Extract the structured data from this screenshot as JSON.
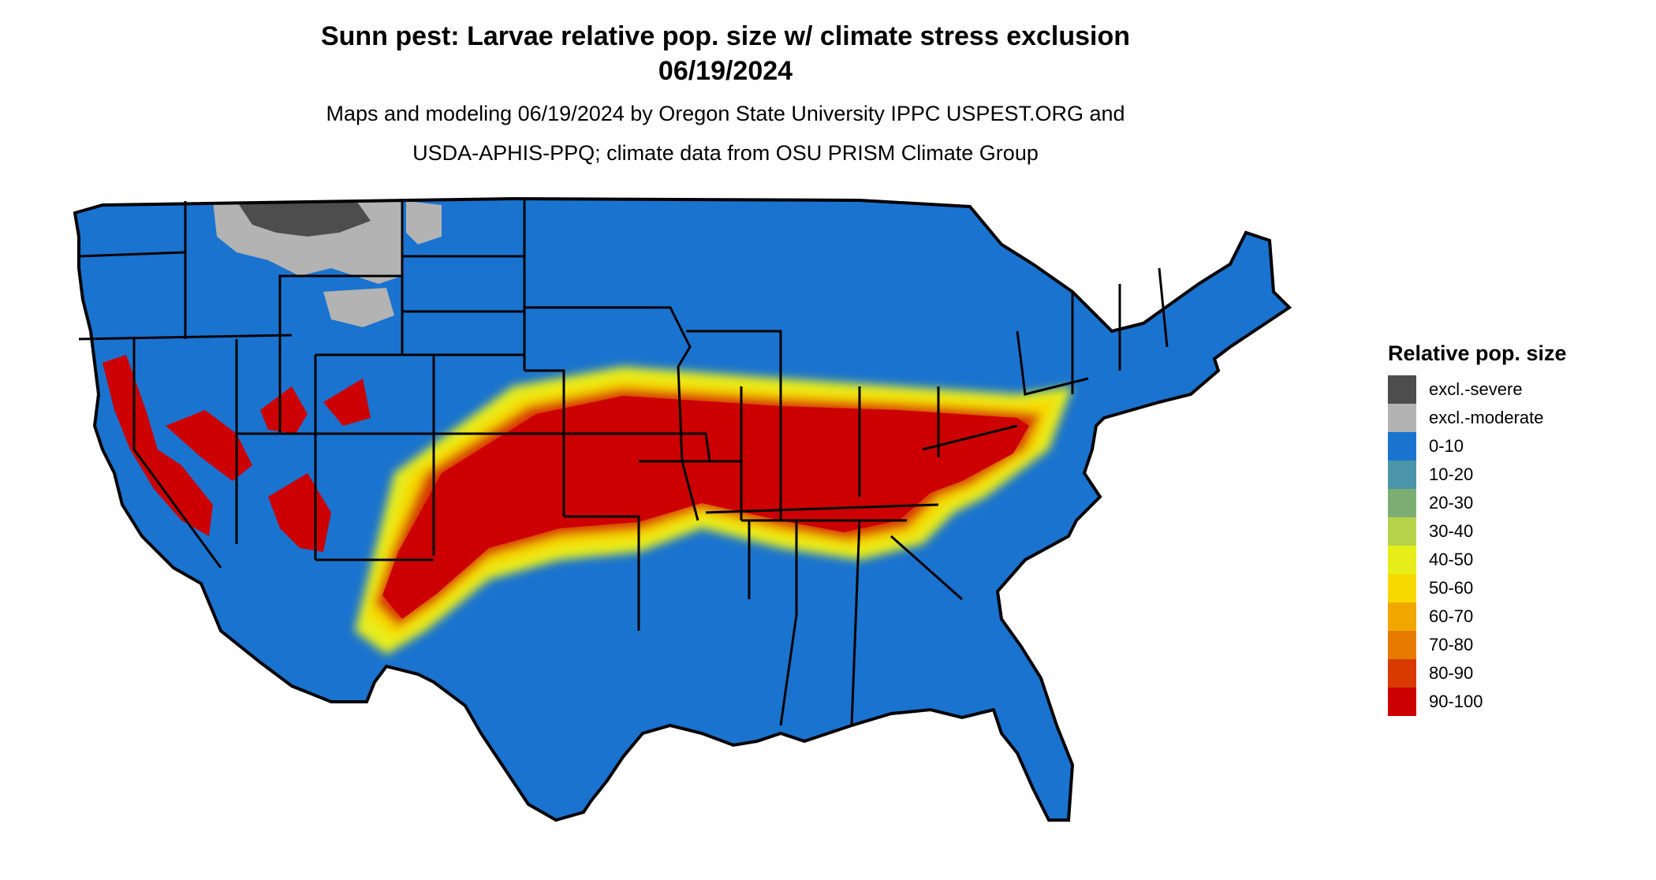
{
  "header": {
    "title_line1": "Sunn pest: Larvae relative pop. size w/ climate stress exclusion",
    "title_line2": "06/19/2024",
    "subtitle_line1": "Maps and modeling 06/19/2024 by Oregon State University IPPC USPEST.ORG and",
    "subtitle_line2": "USDA-APHIS-PPQ; climate data from OSU PRISM Climate Group"
  },
  "legend": {
    "title": "Relative pop. size",
    "items": [
      {
        "label": "excl.-severe",
        "color": "#4d4d4d"
      },
      {
        "label": "excl.-moderate",
        "color": "#b3b3b3"
      },
      {
        "label": "0-10",
        "color": "#1a73cf"
      },
      {
        "label": "10-20",
        "color": "#4a95a8"
      },
      {
        "label": "20-30",
        "color": "#7cae74"
      },
      {
        "label": "30-40",
        "color": "#b5d34a"
      },
      {
        "label": "40-50",
        "color": "#e6ee1a"
      },
      {
        "label": "50-60",
        "color": "#f7d900"
      },
      {
        "label": "60-70",
        "color": "#f0a800"
      },
      {
        "label": "70-80",
        "color": "#e87a00"
      },
      {
        "label": "80-90",
        "color": "#d83a00"
      },
      {
        "label": "90-100",
        "color": "#cc0000"
      }
    ]
  },
  "map": {
    "region": "contiguous-united-states",
    "base_color": "#1a73cf",
    "border_color": "#000000"
  }
}
